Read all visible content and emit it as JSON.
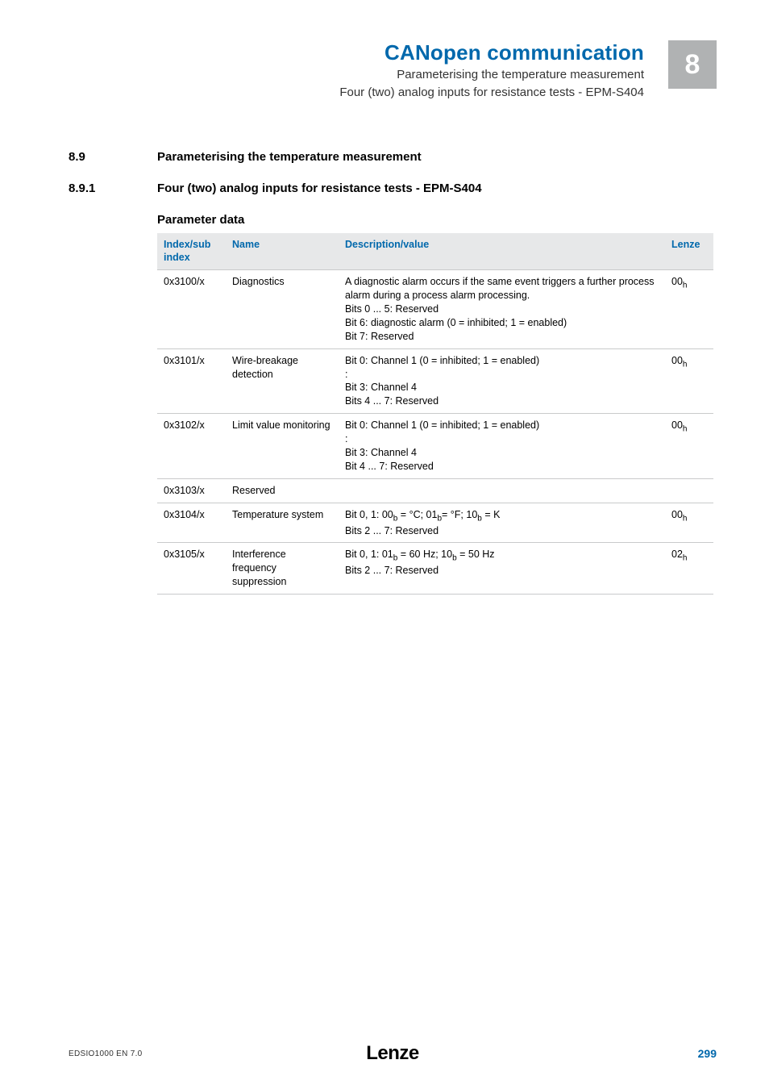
{
  "colors": {
    "brand_blue": "#0068ac",
    "chapter_gray": "#b0b2b3",
    "header_band": "#e7e8e9",
    "rule": "#c9cacb",
    "text": "#000000",
    "bg": "#ffffff"
  },
  "header": {
    "title": "CANopen communication",
    "sub1": "Parameterising the temperature measurement",
    "sub2": "Four (two) analog inputs for resistance tests - EPM-S404",
    "chapter": "8"
  },
  "sections": {
    "s89": {
      "num": "8.9",
      "title": "Parameterising the temperature measurement"
    },
    "s891": {
      "num": "8.9.1",
      "title": "Four (two) analog inputs for resistance tests - EPM-S404"
    },
    "subtitle": "Parameter data"
  },
  "table": {
    "columns": {
      "idx": "Index/sub index",
      "name": "Name",
      "desc": "Description/value",
      "lenze": "Lenze"
    },
    "rows": [
      {
        "idx": "0x3100/x",
        "name": "Diagnostics",
        "desc": "A diagnostic alarm occurs if the same event triggers a further process alarm during a process alarm processing.\nBits 0 ... 5: Reserved\nBit 6: diagnostic alarm (0 = inhibited; 1 = enabled)\nBit 7: Reserved",
        "lenze_html": "00<span class='sub'>h</span>"
      },
      {
        "idx": "0x3101/x",
        "name": "Wire-breakage detection",
        "desc": "Bit 0: Channel 1 (0 = inhibited; 1 = enabled)\n:\nBit 3: Channel 4\nBits 4 ... 7: Reserved",
        "lenze_html": "00<span class='sub'>h</span>"
      },
      {
        "idx": "0x3102/x",
        "name": "Limit value monitoring",
        "desc": "Bit 0: Channel 1 (0 = inhibited; 1 = enabled)\n:\nBit 3: Channel 4\nBit 4 ... 7: Reserved",
        "lenze_html": "00<span class='sub'>h</span>"
      },
      {
        "idx": "0x3103/x",
        "name": "Reserved",
        "desc": "",
        "lenze_html": ""
      },
      {
        "idx": "0x3104/x",
        "name": "Temperature system",
        "desc_html": "Bit 0, 1: 00<span class='sub'>b</span> = °C; 01<span class='sub'>b</span>= °F; 10<span class='sub'>b</span> = K<br>Bits 2 ... 7: Reserved",
        "lenze_html": "00<span class='sub'>h</span>"
      },
      {
        "idx": "0x3105/x",
        "name": "Interference frequency suppression",
        "desc_html": "Bit 0, 1: 01<span class='sub'>b</span> = 60 Hz; 10<span class='sub'>b</span> = 50 Hz<br>Bits 2 ... 7: Reserved",
        "lenze_html": "02<span class='sub'>h</span>"
      }
    ]
  },
  "footer": {
    "left": "EDSIO1000 EN 7.0",
    "brand": "Lenze",
    "page": "299"
  }
}
